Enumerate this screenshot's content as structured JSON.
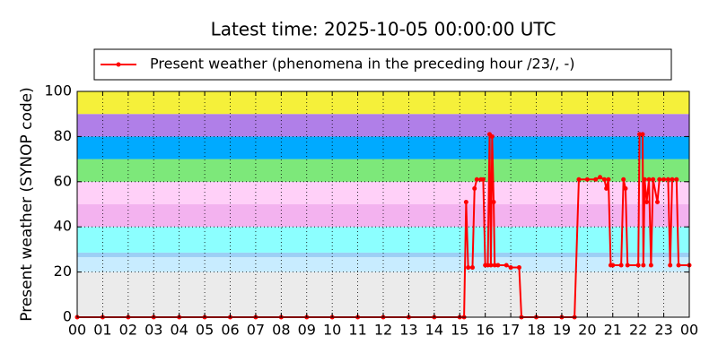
{
  "chart_data": {
    "type": "line",
    "title": "Latest time: 2025-10-05 00:00:00 UTC",
    "y_label": "Present weather (SYNOP code)",
    "xlim": [
      0,
      24
    ],
    "ylim": [
      0,
      100
    ],
    "xticks": [
      {
        "value": 0,
        "label": "00"
      },
      {
        "value": 1,
        "label": "01"
      },
      {
        "value": 2,
        "label": "02"
      },
      {
        "value": 3,
        "label": "03"
      },
      {
        "value": 4,
        "label": "04"
      },
      {
        "value": 5,
        "label": "05"
      },
      {
        "value": 6,
        "label": "06"
      },
      {
        "value": 7,
        "label": "07"
      },
      {
        "value": 8,
        "label": "08"
      },
      {
        "value": 9,
        "label": "09"
      },
      10,
      11,
      12,
      13,
      14,
      15,
      16,
      17,
      18,
      19,
      20,
      21,
      22,
      23,
      {
        "value": 24,
        "label": "00"
      }
    ],
    "yticks": [
      0,
      20,
      40,
      60,
      80,
      100
    ],
    "grid": true,
    "legend": "top",
    "bands": [
      {
        "from": 0,
        "to": 20,
        "color": "#ebebeb"
      },
      {
        "from": 20,
        "to": 26.6,
        "color": "#c8ecff"
      },
      {
        "from": 26.6,
        "to": 28.6,
        "color": "#9ccff5"
      },
      {
        "from": 28.6,
        "to": 40,
        "color": "#8cffff"
      },
      {
        "from": 40,
        "to": 50,
        "color": "#f3b2ef"
      },
      {
        "from": 50,
        "to": 60,
        "color": "#ffd0f8"
      },
      {
        "from": 60,
        "to": 70,
        "color": "#7de87a"
      },
      {
        "from": 70,
        "to": 80,
        "color": "#00aaff"
      },
      {
        "from": 80,
        "to": 90,
        "color": "#b07fe8"
      },
      {
        "from": 90,
        "to": 100,
        "color": "#f5f03a"
      }
    ],
    "series": [
      {
        "name": "Present weather (phenomena in the preceding hour /23/, -)",
        "color": "#ff0000",
        "x": [
          0,
          1,
          2,
          3,
          4,
          5,
          6,
          7,
          8,
          9,
          10,
          11,
          12,
          13,
          14,
          15,
          15.17,
          15.25,
          15.33,
          15.5,
          15.58,
          15.67,
          15.83,
          15.92,
          16.0,
          16.1,
          16.17,
          16.22,
          16.27,
          16.33,
          16.37,
          16.5,
          16.83,
          17.0,
          17.33,
          17.42,
          18,
          19,
          19.5,
          19.67,
          20,
          20.33,
          20.5,
          20.67,
          20.75,
          20.83,
          20.92,
          21,
          21.33,
          21.42,
          21.5,
          21.58,
          22.0,
          22.05,
          22.17,
          22.2,
          22.25,
          22.33,
          22.42,
          22.5,
          22.58,
          22.75,
          22.83,
          23.0,
          23.17,
          23.25,
          23.33,
          23.5,
          23.58,
          24
        ],
        "values": [
          0,
          0,
          0,
          0,
          0,
          0,
          0,
          0,
          0,
          0,
          0,
          0,
          0,
          0,
          0,
          0,
          0,
          51,
          22,
          22,
          57,
          61,
          61,
          61,
          23,
          23,
          81,
          23,
          80,
          51,
          23,
          23,
          23,
          22,
          22,
          0,
          0,
          0,
          0,
          61,
          61,
          61,
          62,
          61,
          57,
          61,
          23,
          23,
          23,
          61,
          57,
          23,
          23,
          81,
          81,
          23,
          61,
          51,
          61,
          23,
          61,
          51,
          61,
          61,
          61,
          23,
          61,
          61,
          23,
          23
        ]
      }
    ]
  }
}
